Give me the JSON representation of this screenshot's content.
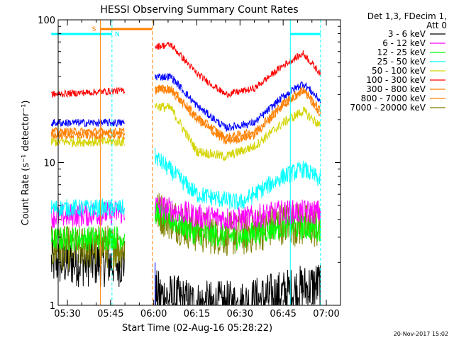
{
  "chart_data": {
    "type": "line",
    "title": "HESSI Observing Summary Count Rates",
    "xlabel": "Start Time (02-Aug-16 05:28:22)",
    "ylabel": "Count Rate (s⁻¹ detector⁻¹)",
    "yscale": "log",
    "ylim": [
      1,
      100
    ],
    "xlim": [
      -5.6,
      90
    ],
    "x_units": "minutes after 05:30 UT",
    "x_ticks": [
      {
        "x": 0,
        "label": "05:30"
      },
      {
        "x": 15,
        "label": "05:45"
      },
      {
        "x": 30,
        "label": "06:00"
      },
      {
        "x": 45,
        "label": "06:15"
      },
      {
        "x": 60,
        "label": "06:30"
      },
      {
        "x": 75,
        "label": "06:45"
      },
      {
        "x": 90,
        "label": "07:00"
      }
    ],
    "y_ticks": [
      {
        "y": 1,
        "label": "1"
      },
      {
        "y": 10,
        "label": "10"
      },
      {
        "y": 100,
        "label": "100"
      }
    ],
    "legend": {
      "placement": "right",
      "header": [
        "Det 1,3, FDecim 1,",
        "Att 0"
      ]
    },
    "data_gap": [
      20,
      30.5
    ],
    "segments": [
      [
        -5.6,
        20
      ],
      [
        30.5,
        88
      ]
    ],
    "annotations": {
      "saa": {
        "label": "S",
        "x_start": 11.5,
        "x_end": 29.5,
        "color": "#ff8000"
      },
      "night": [
        {
          "label": "N",
          "x_start": -5.6,
          "x_end": 15.5,
          "color": "#00ffff"
        },
        {
          "x_start": 77.5,
          "x_end": 88,
          "color": "#00ffff"
        }
      ]
    },
    "series": [
      {
        "name": "3 - 6 keV",
        "color": "#000000",
        "knots": [
          [
            -5.6,
            2.0
          ],
          [
            20,
            2.0
          ],
          [
            30.5,
            1.2
          ],
          [
            45,
            1.0
          ],
          [
            60,
            1.0
          ],
          [
            75,
            1.2
          ],
          [
            88,
            1.4
          ]
        ],
        "noise": 0.5
      },
      {
        "name": "6 - 12 keV",
        "color": "#ff00ff",
        "knots": [
          [
            -5.6,
            4.2
          ],
          [
            20,
            4.5
          ],
          [
            30.5,
            5.0
          ],
          [
            45,
            4.2
          ],
          [
            60,
            4.0
          ],
          [
            75,
            4.5
          ],
          [
            88,
            4.5
          ]
        ],
        "noise": 0.25
      },
      {
        "name": "12 - 25 keV",
        "color": "#00ff00",
        "knots": [
          [
            -5.6,
            2.9
          ],
          [
            20,
            3.0
          ],
          [
            30.5,
            4.5
          ],
          [
            45,
            3.2
          ],
          [
            60,
            3.0
          ],
          [
            75,
            3.6
          ],
          [
            88,
            3.4
          ]
        ],
        "noise": 0.25
      },
      {
        "name": "25 - 50 keV",
        "color": "#00ffff",
        "knots": [
          [
            -5.6,
            4.8
          ],
          [
            20,
            4.8
          ],
          [
            30.5,
            11.0
          ],
          [
            45,
            6.0
          ],
          [
            60,
            5.2
          ],
          [
            75,
            8.0
          ],
          [
            82,
            9.0
          ],
          [
            88,
            7.5
          ]
        ],
        "noise": 0.18
      },
      {
        "name": "50 - 100 keV",
        "color": "#d4d400",
        "knots": [
          [
            -5.6,
            14.0
          ],
          [
            20,
            14.0
          ],
          [
            30.5,
            25.0
          ],
          [
            36,
            24.0
          ],
          [
            45,
            12.0
          ],
          [
            55,
            11.0
          ],
          [
            65,
            13.0
          ],
          [
            75,
            19.0
          ],
          [
            82,
            23.0
          ],
          [
            88,
            18.0
          ]
        ],
        "noise": 0.1
      },
      {
        "name": "100 - 300 keV",
        "color": "#ff0000",
        "knots": [
          [
            -5.6,
            30.0
          ],
          [
            20,
            32.0
          ],
          [
            30.5,
            65.0
          ],
          [
            36,
            67.0
          ],
          [
            45,
            42.0
          ],
          [
            55,
            30.0
          ],
          [
            65,
            33.0
          ],
          [
            75,
            48.0
          ],
          [
            82,
            58.0
          ],
          [
            88,
            42.0
          ]
        ],
        "noise": 0.07
      },
      {
        "name": "300 - 800 keV",
        "color": "#ff8000",
        "knots": [
          [
            -5.6,
            15.5
          ],
          [
            20,
            15.5
          ],
          [
            30.5,
            32.0
          ],
          [
            36,
            32.0
          ],
          [
            45,
            20.0
          ],
          [
            55,
            14.0
          ],
          [
            65,
            15.5
          ],
          [
            75,
            25.0
          ],
          [
            82,
            32.0
          ],
          [
            88,
            22.0
          ]
        ],
        "noise": 0.08
      },
      {
        "name": "800 - 7000 keV",
        "color": "#ff8000",
        "knots": [
          [
            -5.6,
            16.5
          ],
          [
            20,
            16.5
          ],
          [
            30.5,
            33.0
          ],
          [
            36,
            33.0
          ],
          [
            45,
            21.0
          ],
          [
            55,
            15.0
          ],
          [
            65,
            16.5
          ],
          [
            75,
            26.0
          ],
          [
            82,
            33.0
          ],
          [
            88,
            23.0
          ]
        ],
        "noise": 0.08
      },
      {
        "name": "7000 - 20000 keV",
        "color": "#808000",
        "knots": [
          [
            -5.6,
            2.5
          ],
          [
            20,
            2.6
          ],
          [
            30.5,
            4.6
          ],
          [
            45,
            3.3
          ],
          [
            60,
            3.1
          ],
          [
            75,
            3.8
          ],
          [
            88,
            3.5
          ]
        ],
        "noise": 0.45
      },
      {
        "name": "blue",
        "color": "#0000ff",
        "legend": false,
        "knots": [
          [
            -5.6,
            19.0
          ],
          [
            20,
            19.0
          ],
          [
            30.5,
            40.0
          ],
          [
            36,
            40.0
          ],
          [
            45,
            25.0
          ],
          [
            55,
            17.5
          ],
          [
            65,
            19.0
          ],
          [
            75,
            29.0
          ],
          [
            82,
            36.0
          ],
          [
            88,
            27.0
          ]
        ],
        "noise": 0.08
      }
    ],
    "timestamp": "20-Nov-2017 15:02"
  }
}
